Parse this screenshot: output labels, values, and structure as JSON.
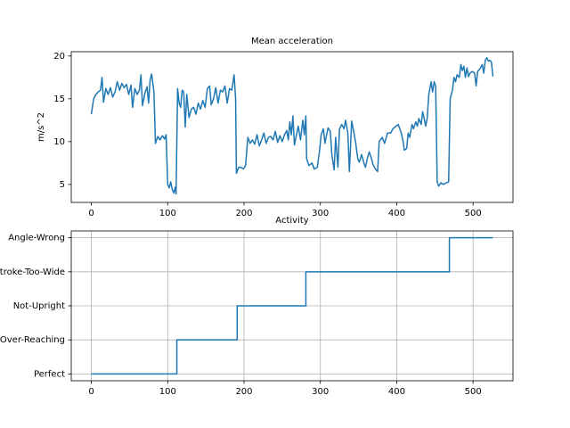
{
  "chart_data": [
    {
      "type": "line",
      "title": "Mean acceleration",
      "y_label": "m/s^2",
      "color": "#1f77b4",
      "grid": false,
      "xlim": [
        -26.3,
        552.3
      ],
      "ylim": [
        2.9,
        20.5
      ],
      "xticks": [
        0,
        100,
        200,
        300,
        400,
        500
      ],
      "yticks": [
        5,
        10,
        15,
        20
      ],
      "x": [
        0,
        3,
        6,
        9,
        12,
        14,
        16,
        19,
        22,
        25,
        28,
        31,
        34,
        37,
        40,
        43,
        46,
        49,
        52,
        54,
        57,
        60,
        63,
        65,
        67,
        70,
        73,
        75,
        77,
        79,
        81,
        82,
        84,
        87,
        90,
        93,
        96,
        98,
        100,
        102,
        104,
        106,
        108,
        110,
        111,
        113,
        115,
        117,
        119,
        121,
        123,
        125,
        128,
        131,
        134,
        137,
        140,
        143,
        146,
        149,
        152,
        155,
        157,
        160,
        163,
        166,
        169,
        172,
        175,
        178,
        181,
        184,
        187,
        189,
        190,
        193,
        196,
        199,
        202,
        205,
        208,
        211,
        214,
        217,
        220,
        223,
        226,
        229,
        232,
        235,
        238,
        241,
        244,
        247,
        250,
        253,
        256,
        258,
        260,
        262,
        264,
        266,
        268,
        271,
        274,
        277,
        279,
        281,
        282,
        285,
        289,
        292,
        296,
        299,
        301,
        304,
        306,
        310,
        313,
        315,
        318,
        320,
        323,
        325,
        328,
        331,
        333,
        336,
        338,
        341,
        344,
        346,
        349,
        351,
        354,
        357,
        359,
        362,
        364,
        367,
        369,
        372,
        375,
        377,
        381,
        384,
        388,
        392,
        395,
        399,
        402,
        406,
        408,
        410,
        413,
        415,
        417,
        420,
        422,
        425,
        427,
        429,
        432,
        434,
        438,
        440,
        442,
        445,
        447,
        449,
        451,
        453,
        455,
        458,
        461,
        465,
        468,
        470,
        473,
        475,
        477,
        479,
        482,
        484,
        486,
        488,
        490,
        492,
        494,
        496,
        499,
        502,
        504,
        506,
        509,
        512,
        514,
        516,
        518,
        520,
        522,
        524,
        526
      ],
      "values": [
        13.2,
        15.0,
        15.5,
        15.8,
        16.0,
        17.5,
        14.6,
        16.2,
        15.5,
        16.3,
        15.2,
        15.8,
        17.0,
        16.0,
        16.8,
        16.3,
        16.7,
        15.5,
        16.6,
        14.0,
        16.2,
        15.5,
        16.0,
        17.8,
        14.2,
        15.6,
        16.4,
        14.5,
        17.2,
        17.9,
        16.5,
        15.8,
        9.8,
        10.6,
        10.2,
        10.7,
        10.3,
        10.8,
        5.0,
        4.6,
        5.3,
        4.4,
        4.0,
        4.7,
        3.9,
        16.2,
        14.5,
        14.0,
        16.0,
        15.8,
        11.7,
        15.5,
        12.8,
        13.8,
        14.0,
        13.2,
        14.5,
        13.8,
        14.8,
        14.0,
        16.2,
        16.5,
        14.3,
        15.0,
        16.3,
        14.5,
        16.0,
        15.8,
        16.5,
        14.5,
        16.2,
        16.0,
        17.8,
        15.0,
        6.3,
        7.0,
        7.0,
        6.8,
        7.2,
        10.5,
        9.8,
        10.2,
        9.7,
        10.8,
        9.5,
        10.2,
        11.0,
        9.8,
        10.5,
        10.6,
        10.2,
        11.2,
        9.9,
        10.7,
        10.0,
        10.8,
        11.3,
        10.2,
        12.3,
        10.8,
        13.0,
        9.6,
        10.5,
        11.8,
        10.2,
        12.5,
        10.8,
        13.0,
        8.0,
        7.2,
        7.5,
        6.8,
        7.0,
        9.0,
        10.8,
        11.5,
        9.8,
        11.6,
        11.2,
        8.5,
        6.7,
        10.5,
        7.0,
        11.5,
        12.0,
        11.5,
        12.5,
        11.0,
        6.5,
        12.4,
        11.0,
        10.0,
        8.0,
        7.6,
        8.5,
        7.5,
        7.0,
        8.2,
        8.8,
        8.0,
        7.3,
        6.8,
        6.5,
        10.0,
        10.5,
        9.8,
        11.0,
        11.0,
        11.5,
        11.8,
        12.0,
        11.0,
        10.2,
        9.0,
        9.2,
        11.0,
        10.5,
        12.0,
        11.5,
        12.3,
        11.8,
        12.7,
        12.0,
        13.5,
        11.8,
        12.8,
        15.5,
        17.0,
        15.8,
        17.0,
        16.5,
        5.3,
        4.8,
        5.2,
        5.0,
        5.2,
        5.3,
        15.0,
        16.0,
        17.5,
        17.0,
        17.8,
        17.5,
        19.0,
        18.3,
        18.8,
        17.5,
        18.6,
        17.6,
        18.0,
        18.2,
        18.0,
        16.5,
        18.2,
        18.5,
        19.0,
        18.0,
        19.5,
        19.8,
        19.4,
        19.5,
        19.3,
        17.6
      ]
    },
    {
      "type": "line",
      "title": "Activity",
      "color": "#1f77b4",
      "grid": true,
      "xlim": [
        -26.3,
        552.3
      ],
      "ylim": [
        -0.2,
        4.2
      ],
      "xticks": [
        0,
        100,
        200,
        300,
        400,
        500
      ],
      "yticks": [
        {
          "value": 0,
          "label": "Perfect"
        },
        {
          "value": 1,
          "label": "Over-Reaching"
        },
        {
          "value": 2,
          "label": "Not-Upright"
        },
        {
          "value": 3,
          "label": "Stroke-Too-Wide"
        },
        {
          "value": 4,
          "label": "Angle-Wrong"
        }
      ],
      "x": [
        0,
        112,
        112,
        191,
        191,
        281,
        281,
        469,
        469,
        526
      ],
      "values": [
        0,
        0,
        1,
        1,
        2,
        2,
        3,
        3,
        4,
        4
      ]
    }
  ]
}
